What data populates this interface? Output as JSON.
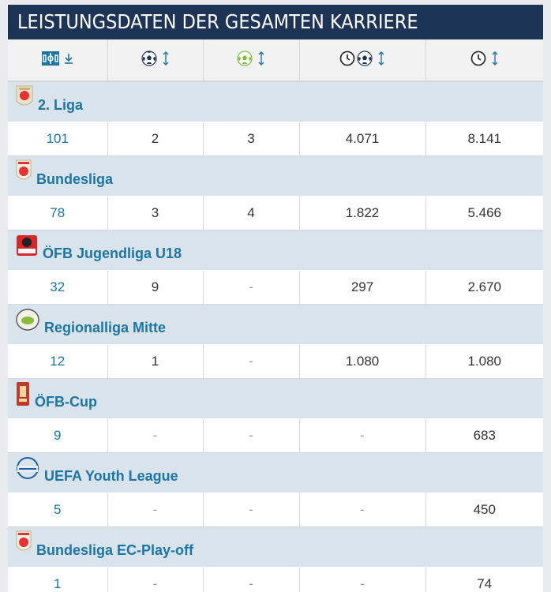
{
  "title": "LEISTUNGSDATEN DER GESAMTEN KARRIERE",
  "header_columns": [
    {
      "icon": "pitch-icon",
      "sort": "sort-desc-icon"
    },
    {
      "icon": "football-icon",
      "sort": "sort-icon"
    },
    {
      "icon": "assist-football-icon",
      "sort": "sort-icon"
    },
    {
      "icon": "clock-football-icon",
      "sort": "sort-icon"
    },
    {
      "icon": "clock-icon",
      "sort": "sort-icon"
    }
  ],
  "competitions": [
    {
      "name": "2. Liga",
      "logo": "2-liga-logo",
      "apps": "101",
      "goals": "2",
      "assists": "3",
      "min_per_goal": "4.071",
      "minutes": "8.141"
    },
    {
      "name": "Bundesliga",
      "logo": "bundesliga-logo",
      "apps": "78",
      "goals": "3",
      "assists": "4",
      "min_per_goal": "1.822",
      "minutes": "5.466"
    },
    {
      "name": "ÖFB Jugendliga U18",
      "logo": "oefb-jugendliga-logo",
      "apps": "32",
      "goals": "9",
      "assists": "-",
      "min_per_goal": "297",
      "minutes": "2.670"
    },
    {
      "name": "Regionalliga Mitte",
      "logo": "regionalliga-mitte-logo",
      "apps": "12",
      "goals": "1",
      "assists": "-",
      "min_per_goal": "1.080",
      "minutes": "1.080"
    },
    {
      "name": "ÖFB-Cup",
      "logo": "oefb-cup-logo",
      "apps": "9",
      "goals": "-",
      "assists": "-",
      "min_per_goal": "-",
      "minutes": "683"
    },
    {
      "name": "UEFA Youth League",
      "logo": "uefa-youth-league-logo",
      "apps": "5",
      "goals": "-",
      "assists": "-",
      "min_per_goal": "-",
      "minutes": "450"
    },
    {
      "name": "Bundesliga EC-Play-off",
      "logo": "bundesliga-playoff-logo",
      "apps": "1",
      "goals": "-",
      "assists": "-",
      "min_per_goal": "-",
      "minutes": "74"
    }
  ],
  "colors": {
    "header": "#1d3456",
    "competition_band": "#d9e3ec",
    "link": "#1d75a3"
  }
}
